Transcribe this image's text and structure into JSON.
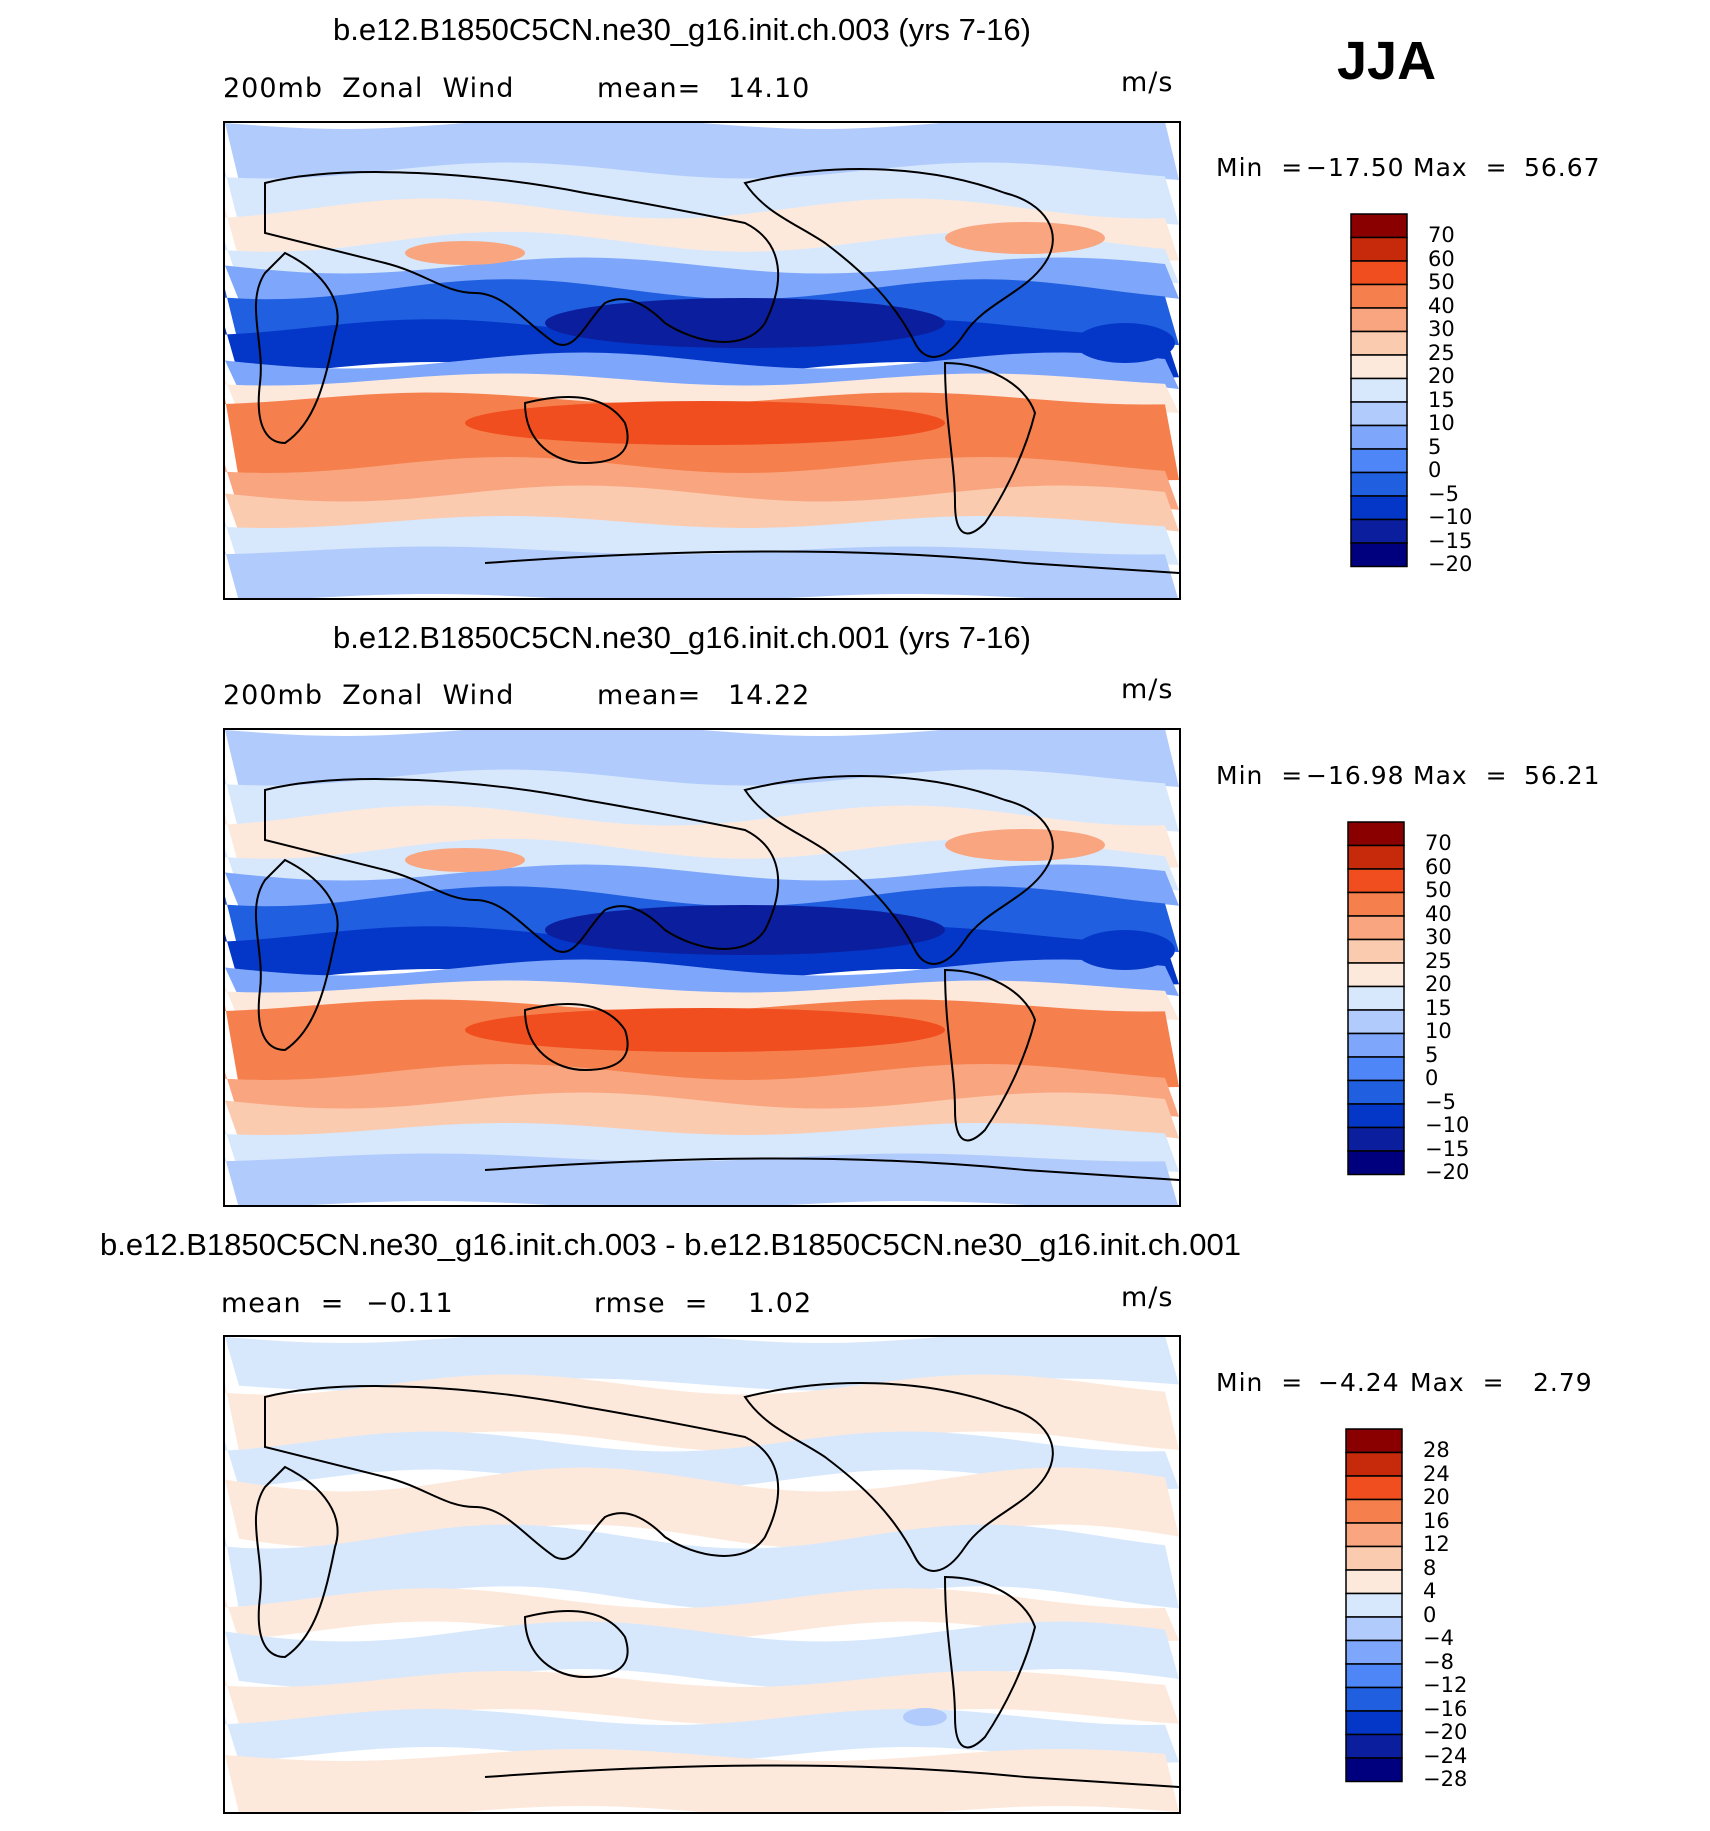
{
  "season": "JJA",
  "colors": {
    "abs": [
      "#00007f",
      "#0b1f9e",
      "#0437c8",
      "#1f5fe0",
      "#4f86f7",
      "#7ea6fa",
      "#b1cbfc",
      "#d7e8fd",
      "#fde9dc",
      "#fbcbb0",
      "#f9a57f",
      "#f5804d",
      "#f04e1f",
      "#c72a0b",
      "#8a0000"
    ],
    "diff": [
      "#00007f",
      "#0b1f9e",
      "#0437c8",
      "#1f5fe0",
      "#4f86f7",
      "#7ea6fa",
      "#b1cbfc",
      "#d7e8fd",
      "#fde9dc",
      "#fbcbb0",
      "#f9a57f",
      "#f5804d",
      "#f04e1f",
      "#c72a0b",
      "#8a0000"
    ]
  },
  "panels": [
    {
      "title": "b.e12.B1850C5CN.ne30_g16.init.ch.003 (yrs 7-16)",
      "left_label": "200mb  Zonal  Wind",
      "mean_label": "mean=",
      "mean_value": "14.10",
      "units": "m/s",
      "min_label": "Min  =",
      "min_value": "−17.50",
      "max_label": "Max  =",
      "max_value": "56.67",
      "colorbar_levels": [
        "70",
        "60",
        "50",
        "40",
        "30",
        "25",
        "20",
        "15",
        "10",
        "5",
        "0",
        "−5",
        "−10",
        "−15",
        "−20"
      ]
    },
    {
      "title": "b.e12.B1850C5CN.ne30_g16.init.ch.001 (yrs 7-16)",
      "left_label": "200mb  Zonal  Wind",
      "mean_label": "mean=",
      "mean_value": "14.22",
      "units": "m/s",
      "min_label": "Min  =",
      "min_value": "−16.98",
      "max_label": "Max  =",
      "max_value": "56.21",
      "colorbar_levels": [
        "70",
        "60",
        "50",
        "40",
        "30",
        "25",
        "20",
        "15",
        "10",
        "5",
        "0",
        "−5",
        "−10",
        "−15",
        "−20"
      ]
    },
    {
      "title": "b.e12.B1850C5CN.ne30_g16.init.ch.003 - b.e12.B1850C5CN.ne30_g16.init.ch.001",
      "left_label": "mean  =",
      "mean_label": "rmse  =",
      "left_value": "−0.11",
      "mean_value": "1.02",
      "units": "m/s",
      "min_label": "Min  =",
      "min_value": "−4.24",
      "max_label": "Max  =",
      "max_value": "2.79",
      "colorbar_levels": [
        "28",
        "24",
        "20",
        "16",
        "12",
        "8",
        "4",
        "0",
        "−4",
        "−8",
        "−12",
        "−16",
        "−20",
        "−24",
        "−28"
      ]
    }
  ]
}
